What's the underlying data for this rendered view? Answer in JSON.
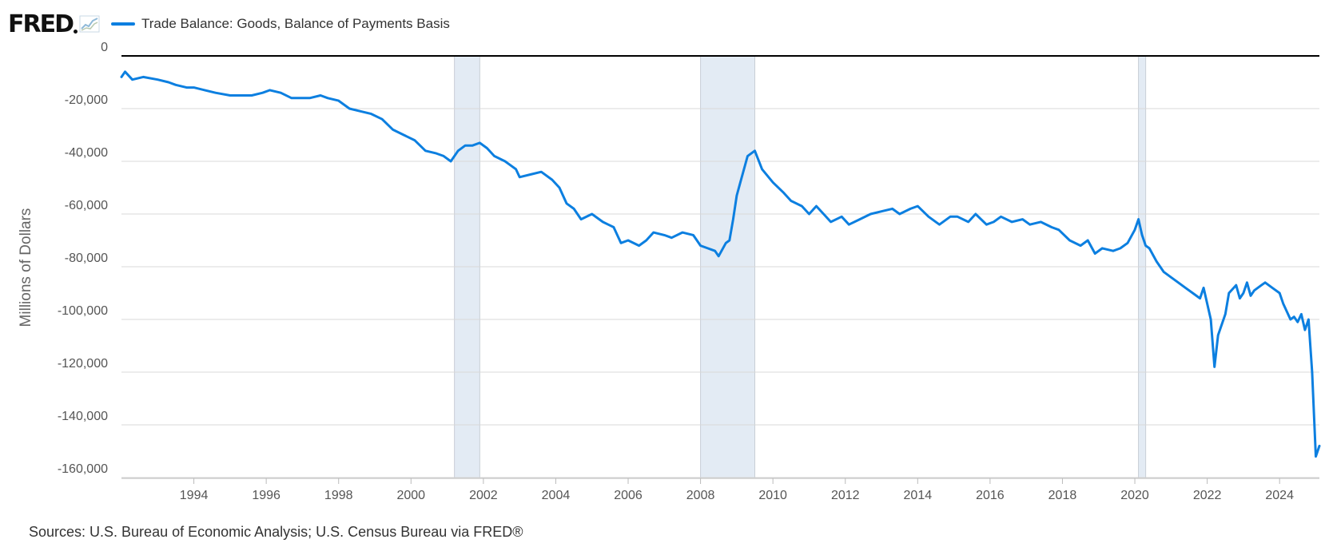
{
  "header": {
    "logo_text": "FRED",
    "legend_label": "Trade Balance: Goods, Balance of Payments Basis"
  },
  "footer": {
    "sources": "Sources: U.S. Bureau of Economic Analysis; U.S. Census Bureau via FRED®"
  },
  "chart_data": {
    "type": "line",
    "title": "",
    "ylabel": "Millions of Dollars",
    "xlabel": "",
    "xlim": [
      1992.0,
      2025.1
    ],
    "ylim": [
      -160000,
      0
    ],
    "ytick_values": [
      0,
      -20000,
      -40000,
      -60000,
      -80000,
      -100000,
      -120000,
      -140000,
      -160000
    ],
    "ytick_labels": [
      "0",
      "-20,000",
      "-40,000",
      "-60,000",
      "-80,000",
      "-100,000",
      "-120,000",
      "-140,000",
      "-160,000"
    ],
    "xtick_values": [
      1994,
      1996,
      1998,
      2000,
      2002,
      2004,
      2006,
      2008,
      2010,
      2012,
      2014,
      2016,
      2018,
      2020,
      2022,
      2024
    ],
    "xtick_labels": [
      "1994",
      "1996",
      "1998",
      "2000",
      "2002",
      "2004",
      "2006",
      "2008",
      "2010",
      "2012",
      "2014",
      "2016",
      "2018",
      "2020",
      "2022",
      "2024"
    ],
    "recessions": [
      [
        2001.2,
        2001.9
      ],
      [
        2008.0,
        2009.5
      ],
      [
        2020.1,
        2020.3
      ]
    ],
    "grid": true,
    "colors": {
      "line": "#0c7fe0",
      "recession": "#e3ebf4",
      "grid": "#d8d8d8",
      "zero_line": "#000000"
    },
    "series": [
      {
        "name": "Trade Balance: Goods, Balance of Payments Basis",
        "x": [
          1992.0,
          1992.1,
          1992.3,
          1992.6,
          1993.0,
          1993.3,
          1993.5,
          1993.8,
          1994.0,
          1994.3,
          1994.6,
          1995.0,
          1995.3,
          1995.6,
          1995.9,
          1996.1,
          1996.4,
          1996.7,
          1996.9,
          1997.2,
          1997.5,
          1997.7,
          1998.0,
          1998.3,
          1998.6,
          1998.9,
          1999.2,
          1999.5,
          1999.8,
          2000.1,
          2000.4,
          2000.7,
          2000.9,
          2001.1,
          2001.3,
          2001.5,
          2001.7,
          2001.9,
          2002.1,
          2002.3,
          2002.6,
          2002.9,
          2003.0,
          2003.3,
          2003.6,
          2003.9,
          2004.1,
          2004.3,
          2004.5,
          2004.7,
          2005.0,
          2005.3,
          2005.6,
          2005.8,
          2006.0,
          2006.3,
          2006.5,
          2006.7,
          2007.0,
          2007.2,
          2007.5,
          2007.8,
          2008.0,
          2008.2,
          2008.4,
          2008.5,
          2008.7,
          2008.8,
          2008.9,
          2009.0,
          2009.1,
          2009.3,
          2009.5,
          2009.7,
          2010.0,
          2010.3,
          2010.5,
          2010.8,
          2011.0,
          2011.2,
          2011.4,
          2011.6,
          2011.9,
          2012.1,
          2012.4,
          2012.7,
          2013.0,
          2013.3,
          2013.5,
          2013.8,
          2014.0,
          2014.3,
          2014.6,
          2014.9,
          2015.1,
          2015.4,
          2015.6,
          2015.9,
          2016.1,
          2016.3,
          2016.6,
          2016.9,
          2017.1,
          2017.4,
          2017.7,
          2017.9,
          2018.2,
          2018.5,
          2018.7,
          2018.9,
          2019.1,
          2019.4,
          2019.6,
          2019.8,
          2020.0,
          2020.1,
          2020.2,
          2020.3,
          2020.4,
          2020.6,
          2020.8,
          2021.0,
          2021.2,
          2021.4,
          2021.6,
          2021.8,
          2021.9,
          2022.1,
          2022.2,
          2022.3,
          2022.5,
          2022.6,
          2022.8,
          2022.9,
          2023.0,
          2023.1,
          2023.2,
          2023.3,
          2023.5,
          2023.6,
          2023.8,
          2024.0,
          2024.1,
          2024.3,
          2024.4,
          2024.5,
          2024.6,
          2024.7,
          2024.8,
          2024.9,
          2025.0,
          2025.1
        ],
        "values": [
          -8000,
          -6000,
          -9000,
          -8000,
          -9000,
          -10000,
          -11000,
          -12000,
          -12000,
          -13000,
          -14000,
          -15000,
          -15000,
          -15000,
          -14000,
          -13000,
          -14000,
          -16000,
          -16000,
          -16000,
          -15000,
          -16000,
          -17000,
          -20000,
          -21000,
          -22000,
          -24000,
          -28000,
          -30000,
          -32000,
          -36000,
          -37000,
          -38000,
          -40000,
          -36000,
          -34000,
          -34000,
          -33000,
          -35000,
          -38000,
          -40000,
          -43000,
          -46000,
          -45000,
          -44000,
          -47000,
          -50000,
          -56000,
          -58000,
          -62000,
          -60000,
          -63000,
          -65000,
          -71000,
          -70000,
          -72000,
          -70000,
          -67000,
          -68000,
          -69000,
          -67000,
          -68000,
          -72000,
          -73000,
          -74000,
          -76000,
          -71000,
          -70000,
          -62000,
          -53000,
          -48000,
          -38000,
          -36000,
          -43000,
          -48000,
          -52000,
          -55000,
          -57000,
          -60000,
          -57000,
          -60000,
          -63000,
          -61000,
          -64000,
          -62000,
          -60000,
          -59000,
          -58000,
          -60000,
          -58000,
          -57000,
          -61000,
          -64000,
          -61000,
          -61000,
          -63000,
          -60000,
          -64000,
          -63000,
          -61000,
          -63000,
          -62000,
          -64000,
          -63000,
          -65000,
          -66000,
          -70000,
          -72000,
          -70000,
          -75000,
          -73000,
          -74000,
          -73000,
          -71000,
          -66000,
          -62000,
          -68000,
          -72000,
          -73000,
          -78000,
          -82000,
          -84000,
          -86000,
          -88000,
          -90000,
          -92000,
          -88000,
          -100000,
          -118000,
          -106000,
          -98000,
          -90000,
          -87000,
          -92000,
          -90000,
          -86000,
          -91000,
          -89000,
          -87000,
          -86000,
          -88000,
          -90000,
          -94000,
          -100000,
          -99000,
          -101000,
          -98000,
          -104000,
          -100000,
          -120000,
          -152000,
          -148000
        ]
      }
    ]
  }
}
